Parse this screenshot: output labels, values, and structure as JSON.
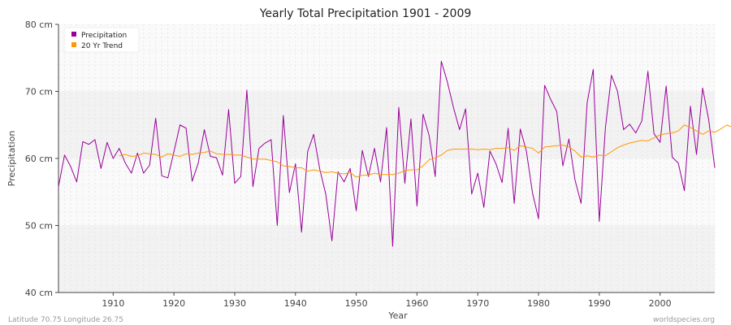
{
  "chart_data": {
    "type": "line",
    "title": "Yearly Total Precipitation 1901 - 2009",
    "xlabel": "Year",
    "ylabel": "Precipitation",
    "xlim": [
      1901,
      2009
    ],
    "ylim": [
      40,
      80
    ],
    "x_ticks": [
      1910,
      1920,
      1930,
      1940,
      1950,
      1960,
      1970,
      1980,
      1990,
      2000
    ],
    "y_ticks": [
      {
        "value": 40,
        "label": "40 cm"
      },
      {
        "value": 50,
        "label": "50 cm"
      },
      {
        "value": 60,
        "label": "60 cm"
      },
      {
        "value": 70,
        "label": "70 cm"
      },
      {
        "value": 80,
        "label": "80 cm"
      }
    ],
    "grid": true,
    "legend_position": "top-left",
    "series": [
      {
        "name": "Precipitation",
        "color": "#990099",
        "x_start": 1901,
        "values": [
          55.8,
          60.5,
          58.8,
          56.5,
          62.5,
          62.1,
          62.8,
          58.5,
          62.4,
          60.0,
          61.5,
          59.3,
          57.8,
          60.8,
          57.8,
          59.0,
          66.0,
          57.4,
          57.1,
          61.0,
          65.0,
          64.5,
          56.6,
          59.3,
          64.3,
          60.3,
          60.1,
          57.5,
          67.3,
          56.3,
          57.3,
          70.2,
          55.8,
          61.5,
          62.3,
          62.8,
          50.0,
          66.4,
          54.9,
          59.2,
          49.0,
          61.0,
          63.6,
          58.4,
          54.6,
          47.7,
          58.0,
          56.5,
          58.5,
          52.2,
          61.2,
          57.3,
          61.5,
          56.5,
          64.6,
          46.9,
          67.6,
          56.3,
          65.9,
          52.9,
          66.6,
          63.4,
          57.3,
          74.5,
          71.4,
          67.6,
          64.3,
          67.4,
          54.7,
          57.8,
          52.7,
          61.1,
          59.2,
          56.4,
          64.5,
          53.3,
          64.4,
          61.1,
          54.9,
          51.0,
          70.9,
          68.8,
          67.0,
          58.9,
          62.9,
          56.8,
          53.3,
          68.3,
          73.3,
          50.6,
          64.5,
          72.4,
          70.0,
          64.3,
          65.1,
          63.8,
          65.6,
          73.0,
          63.7,
          62.4,
          70.8,
          60.2,
          59.3,
          55.2,
          67.8,
          60.6,
          70.5,
          65.8,
          58.6
        ]
      },
      {
        "name": "20 Yr Trend",
        "color": "#ff9900",
        "x_start": 1911,
        "values": [
          60.4,
          60.6,
          60.3,
          60.4,
          60.8,
          60.7,
          60.6,
          60.2,
          60.7,
          60.5,
          60.3,
          60.7,
          60.6,
          60.8,
          60.9,
          61.1,
          60.7,
          60.6,
          60.6,
          60.5,
          60.5,
          60.2,
          59.9,
          59.9,
          59.9,
          59.7,
          59.5,
          58.9,
          58.8,
          58.6,
          58.6,
          58.1,
          58.3,
          58.1,
          57.9,
          58.0,
          57.8,
          57.7,
          57.9,
          57.2,
          57.5,
          57.5,
          57.8,
          57.6,
          57.6,
          57.6,
          57.8,
          58.2,
          58.3,
          58.3,
          58.9,
          59.8,
          60.1,
          60.5,
          61.2,
          61.4,
          61.4,
          61.4,
          61.4,
          61.3,
          61.4,
          61.3,
          61.5,
          61.5,
          61.6,
          61.2,
          61.9,
          61.7,
          61.5,
          60.8,
          61.7,
          61.8,
          61.9,
          62.0,
          61.7,
          61.1,
          60.2,
          60.4,
          60.2,
          60.5,
          60.4,
          61.0,
          61.6,
          62.0,
          62.3,
          62.5,
          62.7,
          62.6,
          63.1,
          63.5,
          63.7,
          63.8,
          64.1,
          65.0,
          64.6,
          64.1,
          63.6,
          64.1,
          63.9,
          64.4,
          65.0,
          64.6,
          64.4
        ]
      }
    ]
  },
  "footer": {
    "left": "Latitude 70.75 Longitude 26.75",
    "right": "worldspecies.org"
  }
}
